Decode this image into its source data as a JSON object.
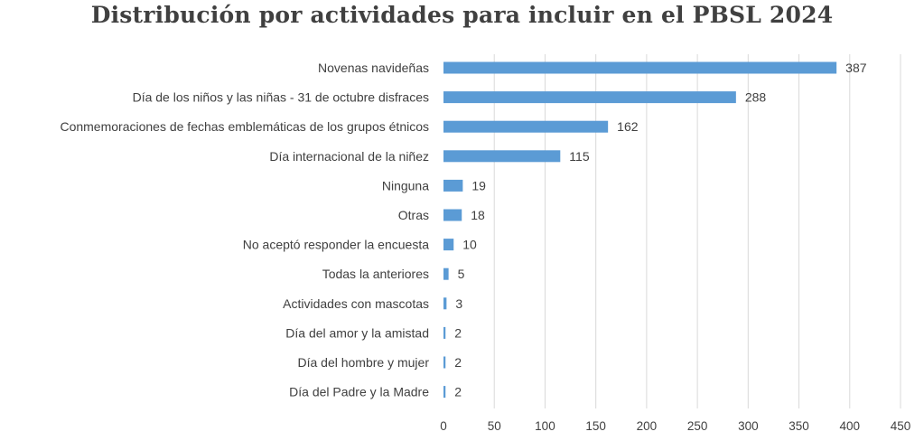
{
  "chart_data": {
    "type": "bar",
    "orientation": "horizontal",
    "title": "Distribución por actividades para incluir en el PBSL 2024",
    "categories": [
      "Novenas navideñas",
      "Día de los niños y las niñas - 31 de octubre disfraces",
      "Conmemoraciones de fechas emblemáticas de los grupos étnicos",
      "Día internacional de la niñez",
      "Ninguna",
      "Otras",
      "No aceptó responder la encuesta",
      "Todas la anteriores",
      "Actividades con mascotas",
      "Día del amor y la amistad",
      "Día del hombre y mujer",
      "Día del Padre y la Madre"
    ],
    "values": [
      387,
      288,
      162,
      115,
      19,
      18,
      10,
      5,
      3,
      2,
      2,
      2
    ],
    "xlim": [
      0,
      450
    ],
    "xticks": [
      0,
      50,
      100,
      150,
      200,
      250,
      300,
      350,
      400,
      450
    ],
    "bar_color": "#5B9BD5",
    "grid": true,
    "legend": "none"
  }
}
